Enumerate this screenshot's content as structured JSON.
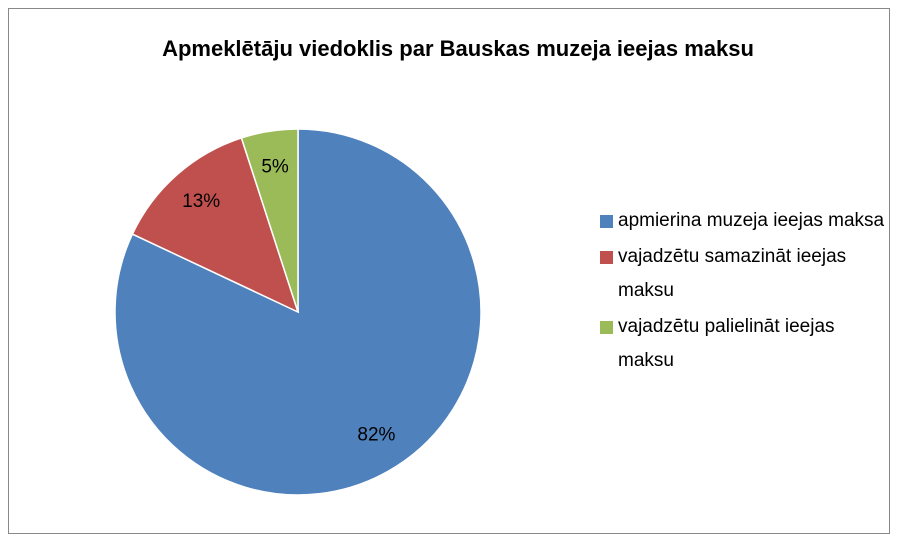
{
  "chart_data": {
    "type": "pie",
    "title": "Apmeklētāju viedoklis par Bauskas muzeja ieejas maksu",
    "categories": [
      "apmierina muzeja ieejas maksa",
      "vajadzētu samazināt ieejas maksu",
      "vajadzētu palielināt ieejas maksu"
    ],
    "values": [
      82,
      13,
      5
    ],
    "value_labels": [
      "82%",
      "13%",
      "5%"
    ],
    "colors": [
      "#4f81bd",
      "#c0504d",
      "#9bbb59"
    ],
    "legend": "right"
  }
}
